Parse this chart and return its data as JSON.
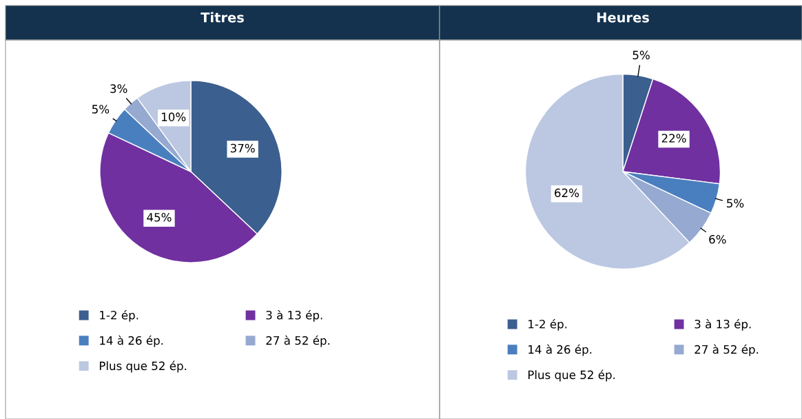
{
  "chart_data": [
    {
      "type": "pie",
      "title": "Titres",
      "categories": [
        "1-2 ép.",
        "3 à 13 ép.",
        "14 à 26 ép.",
        "27 à 52 ép.",
        "Plus que 52 ép."
      ],
      "values": [
        37,
        45,
        5,
        3,
        10
      ],
      "value_labels": [
        "37%",
        "45%",
        "5%",
        "3%",
        "10%"
      ],
      "colors": [
        "#3b5f8e",
        "#7030a0",
        "#4a7fbf",
        "#95a9d1",
        "#bcc8e2"
      ],
      "legend": "bottom"
    },
    {
      "type": "pie",
      "title": "Heures",
      "categories": [
        "1-2 ép.",
        "3 à 13 ép.",
        "14 à 26 ép.",
        "27 à 52 ép.",
        "Plus que 52 ép."
      ],
      "values": [
        5,
        22,
        5,
        6,
        62
      ],
      "value_labels": [
        "5%",
        "22%",
        "5%",
        "6%",
        "62%"
      ],
      "colors": [
        "#3b5f8e",
        "#7030a0",
        "#4a7fbf",
        "#95a9d1",
        "#bcc8e2"
      ],
      "legend": "bottom"
    }
  ]
}
